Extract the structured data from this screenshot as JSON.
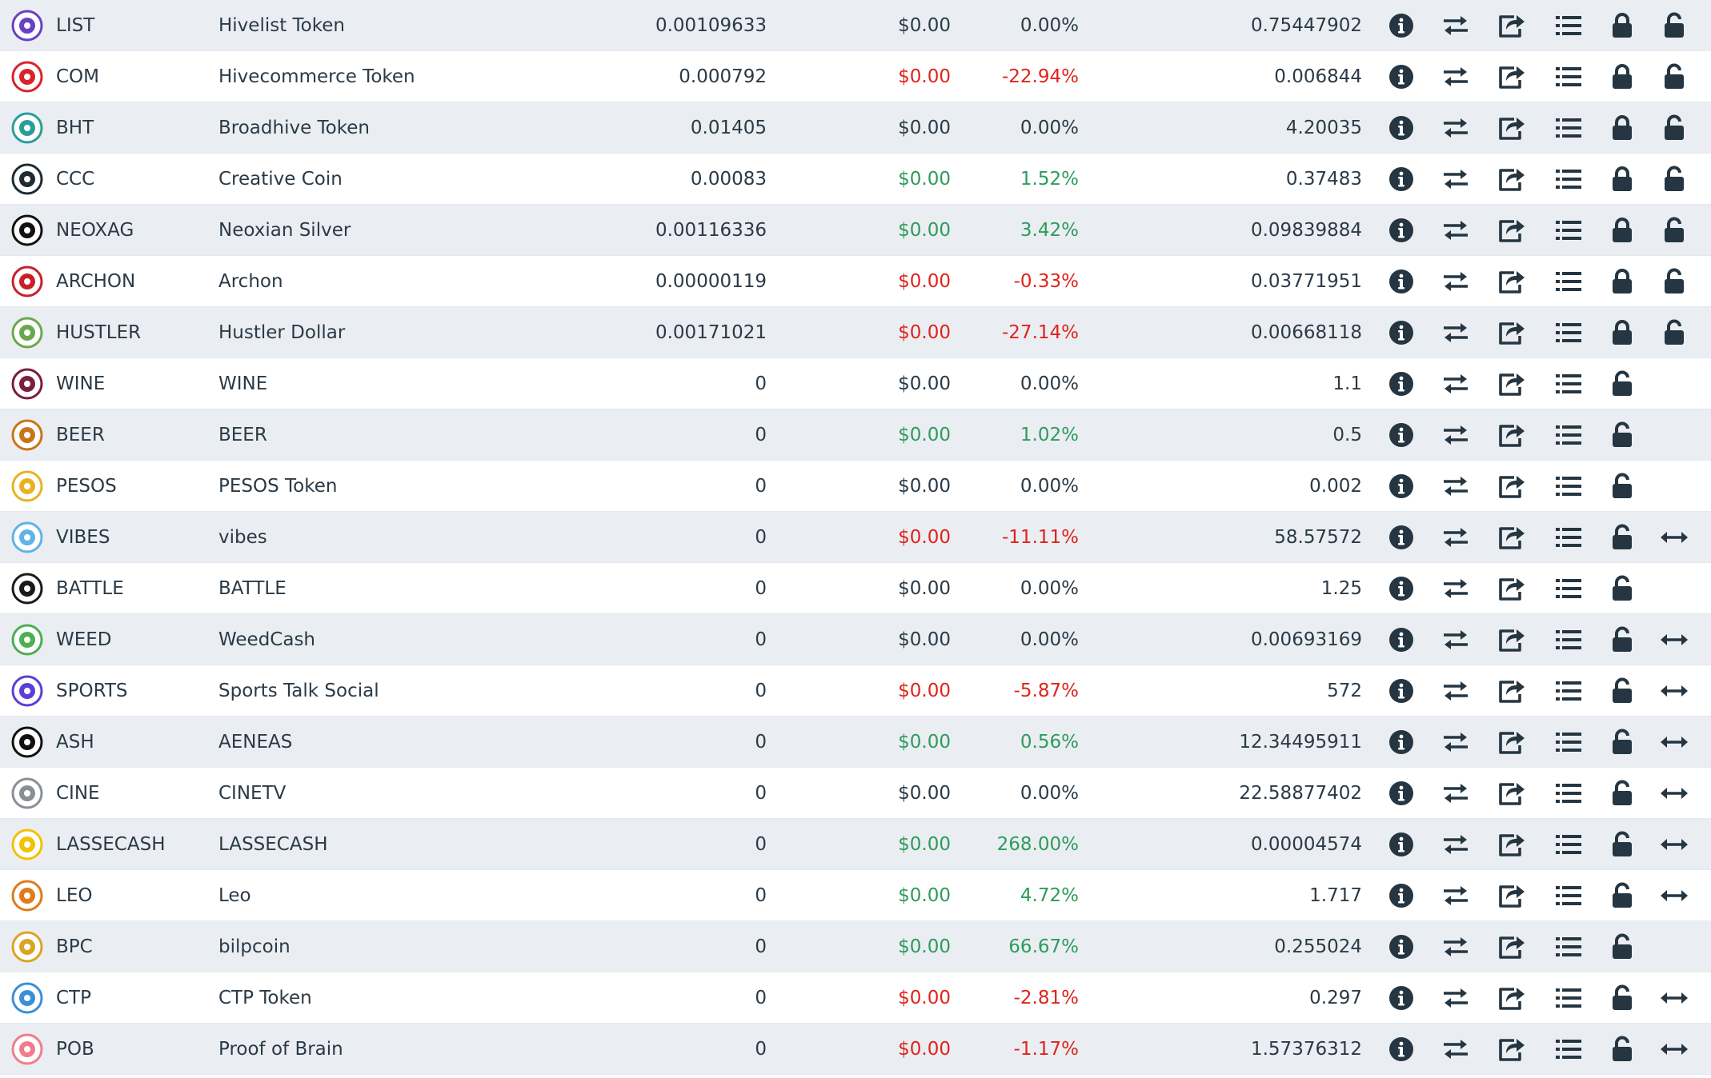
{
  "colors": {
    "row_alt": "#eaeef3",
    "row_plain": "#ffffff",
    "icon": "#253642",
    "positive": "#2e9b5a",
    "negative": "#e0231b"
  },
  "tokens": [
    {
      "symbol": "LIST",
      "name": "Hivelist Token",
      "balance": "0.00109633",
      "usd": "$0.00",
      "change": "0.00%",
      "trend": "neutral",
      "stake": "0.75447902",
      "locked": true,
      "delegation": false,
      "logo_icon": "hivelist-logo-icon",
      "logo_color": "#6b3fc6"
    },
    {
      "symbol": "COM",
      "name": "Hivecommerce Token",
      "balance": "0.000792",
      "usd": "$0.00",
      "change": "-22.94%",
      "trend": "negative",
      "stake": "0.006844",
      "locked": true,
      "delegation": false,
      "logo_icon": "hivecommerce-logo-icon",
      "logo_color": "#d8232a"
    },
    {
      "symbol": "BHT",
      "name": "Broadhive Token",
      "balance": "0.01405",
      "usd": "$0.00",
      "change": "0.00%",
      "trend": "neutral",
      "stake": "4.20035",
      "locked": true,
      "delegation": false,
      "logo_icon": "broadhive-logo-icon",
      "logo_color": "#2a9d96"
    },
    {
      "symbol": "CCC",
      "name": "Creative Coin",
      "balance": "0.00083",
      "usd": "$0.00",
      "change": "1.52%",
      "trend": "positive",
      "stake": "0.37483",
      "locked": true,
      "delegation": false,
      "logo_icon": "creative-coin-logo-icon",
      "logo_color": "#1e2b33"
    },
    {
      "symbol": "NEOXAG",
      "name": "Neoxian Silver",
      "balance": "0.00116336",
      "usd": "$0.00",
      "change": "3.42%",
      "trend": "positive",
      "stake": "0.09839884",
      "locked": true,
      "delegation": false,
      "logo_icon": "neoxian-silver-logo-icon",
      "logo_color": "#111111"
    },
    {
      "symbol": "ARCHON",
      "name": "Archon",
      "balance": "0.00000119",
      "usd": "$0.00",
      "change": "-0.33%",
      "trend": "negative",
      "stake": "0.03771951",
      "locked": true,
      "delegation": false,
      "logo_icon": "archon-logo-icon",
      "logo_color": "#c8202a"
    },
    {
      "symbol": "HUSTLER",
      "name": "Hustler Dollar",
      "balance": "0.00171021",
      "usd": "$0.00",
      "change": "-27.14%",
      "trend": "negative",
      "stake": "0.00668118",
      "locked": true,
      "delegation": false,
      "logo_icon": "hustler-logo-icon",
      "logo_color": "#6aa84f"
    },
    {
      "symbol": "WINE",
      "name": "WINE",
      "balance": "0",
      "usd": "$0.00",
      "change": "0.00%",
      "trend": "neutral",
      "stake": "1.1",
      "locked": false,
      "delegation": false,
      "logo_icon": "wine-logo-icon",
      "logo_color": "#7a1f3d"
    },
    {
      "symbol": "BEER",
      "name": "BEER",
      "balance": "0",
      "usd": "$0.00",
      "change": "1.02%",
      "trend": "positive",
      "stake": "0.5",
      "locked": false,
      "delegation": false,
      "logo_icon": "beer-logo-icon",
      "logo_color": "#c9741b"
    },
    {
      "symbol": "PESOS",
      "name": "PESOS Token",
      "balance": "0",
      "usd": "$0.00",
      "change": "0.00%",
      "trend": "neutral",
      "stake": "0.002",
      "locked": false,
      "delegation": false,
      "logo_icon": "pesos-logo-icon",
      "logo_color": "#e6b422"
    },
    {
      "symbol": "VIBES",
      "name": "vibes",
      "balance": "0",
      "usd": "$0.00",
      "change": "-11.11%",
      "trend": "negative",
      "stake": "58.57572",
      "locked": false,
      "delegation": true,
      "logo_icon": "vibes-logo-icon",
      "logo_color": "#5fb3e6"
    },
    {
      "symbol": "BATTLE",
      "name": "BATTLE",
      "balance": "0",
      "usd": "$0.00",
      "change": "0.00%",
      "trend": "neutral",
      "stake": "1.25",
      "locked": false,
      "delegation": false,
      "logo_icon": "battle-logo-icon",
      "logo_color": "#1a1a1a"
    },
    {
      "symbol": "WEED",
      "name": "WeedCash",
      "balance": "0",
      "usd": "$0.00",
      "change": "0.00%",
      "trend": "neutral",
      "stake": "0.00693169",
      "locked": false,
      "delegation": true,
      "logo_icon": "weedcash-logo-icon",
      "logo_color": "#4caf50"
    },
    {
      "symbol": "SPORTS",
      "name": "Sports Talk Social",
      "balance": "0",
      "usd": "$0.00",
      "change": "-5.87%",
      "trend": "negative",
      "stake": "572",
      "locked": false,
      "delegation": true,
      "logo_icon": "sports-logo-icon",
      "logo_color": "#5b3fd6"
    },
    {
      "symbol": "ASH",
      "name": "AENEAS",
      "balance": "0",
      "usd": "$0.00",
      "change": "0.56%",
      "trend": "positive",
      "stake": "12.34495911",
      "locked": false,
      "delegation": true,
      "logo_icon": "aeneas-logo-icon",
      "logo_color": "#111111"
    },
    {
      "symbol": "CINE",
      "name": "CINETV",
      "balance": "0",
      "usd": "$0.00",
      "change": "0.00%",
      "trend": "neutral",
      "stake": "22.58877402",
      "locked": false,
      "delegation": true,
      "logo_icon": "cinetv-logo-icon",
      "logo_color": "#8a8f96"
    },
    {
      "symbol": "LASSECASH",
      "name": "LASSECASH",
      "balance": "0",
      "usd": "$0.00",
      "change": "268.00%",
      "trend": "positive",
      "stake": "0.00004574",
      "locked": false,
      "delegation": true,
      "logo_icon": "lassecash-logo-icon",
      "logo_color": "#f2c200"
    },
    {
      "symbol": "LEO",
      "name": "Leo",
      "balance": "0",
      "usd": "$0.00",
      "change": "4.72%",
      "trend": "positive",
      "stake": "1.717",
      "locked": false,
      "delegation": true,
      "logo_icon": "leo-logo-icon",
      "logo_color": "#e07b1a"
    },
    {
      "symbol": "BPC",
      "name": "bilpcoin",
      "balance": "0",
      "usd": "$0.00",
      "change": "66.67%",
      "trend": "positive",
      "stake": "0.255024",
      "locked": false,
      "delegation": false,
      "logo_icon": "bilpcoin-logo-icon",
      "logo_color": "#d9a521"
    },
    {
      "symbol": "CTP",
      "name": "CTP Token",
      "balance": "0",
      "usd": "$0.00",
      "change": "-2.81%",
      "trend": "negative",
      "stake": "0.297",
      "locked": false,
      "delegation": true,
      "logo_icon": "ctp-logo-icon",
      "logo_color": "#3a8fd8"
    },
    {
      "symbol": "POB",
      "name": "Proof of Brain",
      "balance": "0",
      "usd": "$0.00",
      "change": "-1.17%",
      "trend": "negative",
      "stake": "1.57376312",
      "locked": false,
      "delegation": true,
      "logo_icon": "pob-logo-icon",
      "logo_color": "#f07c8a"
    }
  ]
}
